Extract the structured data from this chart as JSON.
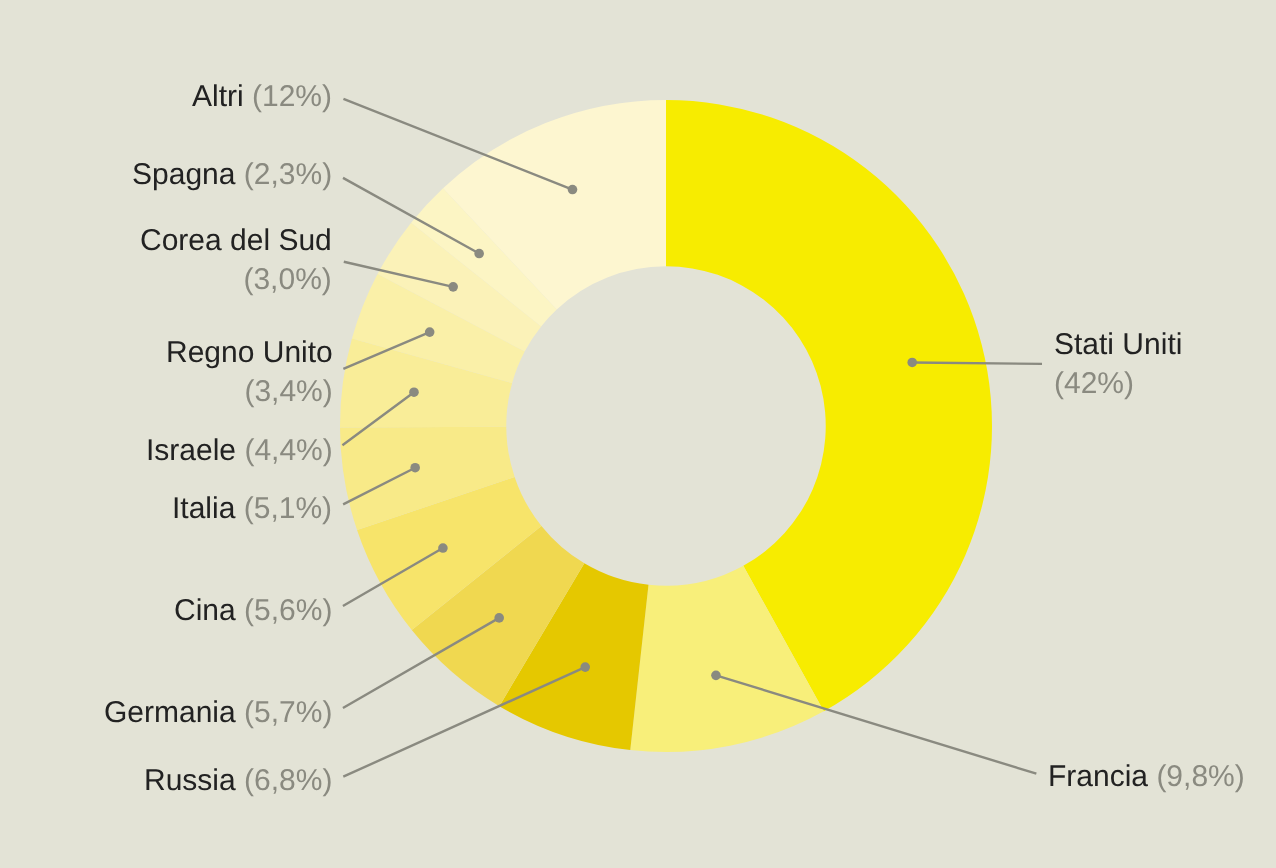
{
  "chart_data": {
    "type": "donut",
    "categories": [
      "Stati Uniti",
      "Francia",
      "Russia",
      "Germania",
      "Cina",
      "Italia",
      "Israele",
      "Regno Unito",
      "Corea del Sud",
      "Spagna",
      "Altri"
    ],
    "values": [
      42,
      9.8,
      6.8,
      5.7,
      5.6,
      5.1,
      4.4,
      3.4,
      3.0,
      2.3,
      12
    ],
    "value_labels": [
      "(42%)",
      "(9,8%)",
      "(6,8%)",
      "(5,7%)",
      "(5,6%)",
      "(5,1%)",
      "(4,4%)",
      "(3,4%)",
      "(3,0%)",
      "(2,3%)",
      "(12%)"
    ],
    "colors": [
      "#f7ec00",
      "#f8ef7a",
      "#e5c800",
      "#f0d850",
      "#f7e46a",
      "#f8ea88",
      "#f9ed98",
      "#faf0a8",
      "#fbf2b8",
      "#fcf5c4",
      "#fdf6d0"
    ],
    "legend": false
  }
}
